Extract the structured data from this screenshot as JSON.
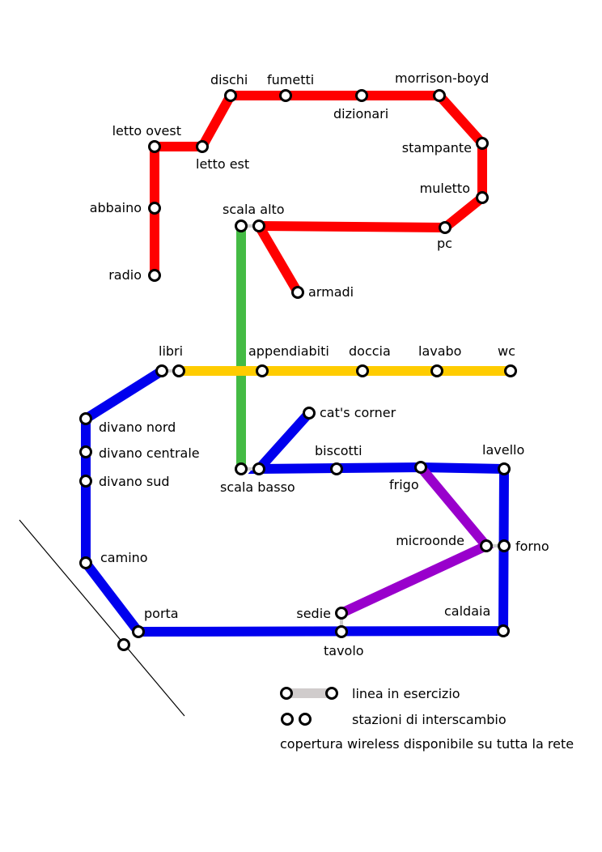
{
  "stations": {
    "letto_ovest": "letto ovest",
    "letto_est": "letto est",
    "dischi": "dischi",
    "fumetti": "fumetti",
    "dizionari": "dizionari",
    "morrison_boyd": "morrison-boyd",
    "stampante": "stampante",
    "muletto": "muletto",
    "pc": "pc",
    "abbaino": "abbaino",
    "radio": "radio",
    "scala_alto": "scala alto",
    "armadi": "armadi",
    "libri": "libri",
    "appendiabiti": "appendiabiti",
    "doccia": "doccia",
    "lavabo": "lavabo",
    "wc": "wc",
    "cats_corner": "cat's corner",
    "divano_nord": "divano nord",
    "divano_centrale": "divano centrale",
    "divano_sud": "divano sud",
    "camino": "camino",
    "scala_basso": "scala basso",
    "biscotti": "biscotti",
    "frigo": "frigo",
    "lavello": "lavello",
    "microonde": "microonde",
    "forno": "forno",
    "sedie": "sedie",
    "caldaia": "caldaia",
    "porta": "porta",
    "tavolo": "tavolo"
  },
  "legend": {
    "line_in_service": "linea in esercizio",
    "interchange": "stazioni di interscambio",
    "wireless": "copertura wireless disponibile su tutta la rete"
  },
  "colors": {
    "red_line": "#ff0000",
    "green_line": "#44bb44",
    "yellow_line": "#ffcc00",
    "blue_line": "#0000ee",
    "purple_line": "#9900cc",
    "legend_line": "#d0cccc"
  }
}
